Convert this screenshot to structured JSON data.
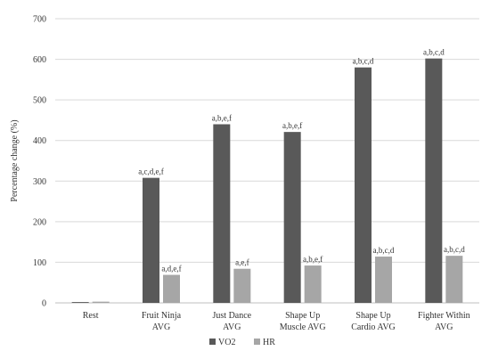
{
  "chart_data": {
    "type": "bar",
    "ylabel": "Percentage change (%)",
    "xlabel": "",
    "ylim": [
      0,
      700
    ],
    "yticks": [
      0,
      100,
      200,
      300,
      400,
      500,
      600,
      700
    ],
    "grid": true,
    "legend_position": "bottom",
    "categories": [
      [
        "Rest"
      ],
      [
        "Fruit Ninja",
        "AVG"
      ],
      [
        "Just Dance",
        "AVG"
      ],
      [
        "Shape Up",
        "Muscle AVG"
      ],
      [
        "Shape Up",
        "Cardio AVG"
      ],
      [
        "Fighter Within",
        "AVG"
      ]
    ],
    "series": [
      {
        "name": "VO2",
        "color": "#595959",
        "values": [
          2,
          308,
          440,
          421,
          580,
          602
        ],
        "annotations": [
          "",
          "a,c,d,e,f",
          "a,b,e,f",
          "a,b,e,f",
          "a,b,c,d",
          "a,b,c,d"
        ]
      },
      {
        "name": "HR",
        "color": "#a6a6a6",
        "values": [
          3,
          69,
          84,
          92,
          114,
          116
        ],
        "annotations": [
          "",
          "a,d,e,f",
          "a,e,f",
          "a,b,e,f",
          "a,b,c,d",
          "a,b,c,d"
        ]
      }
    ]
  }
}
